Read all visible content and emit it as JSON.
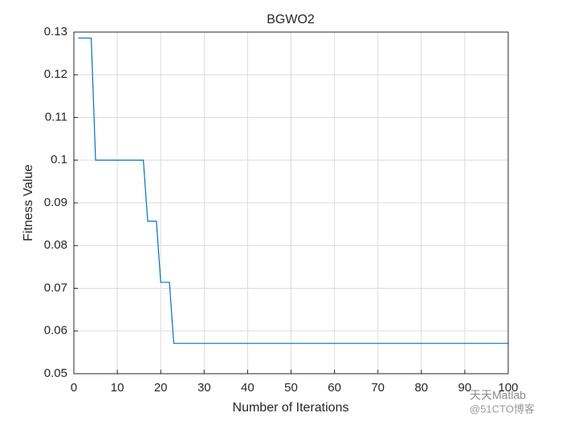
{
  "chart_data": {
    "type": "line",
    "title": "BGWO2",
    "x_label": "Number of Iterations",
    "y_label": "Fitness Value",
    "x": [
      1,
      4,
      5,
      16,
      17,
      19,
      20,
      22,
      23,
      100
    ],
    "series": [
      {
        "color": "#0072bd",
        "values": [
          0.1286,
          0.1286,
          0.1,
          0.1,
          0.0857,
          0.0857,
          0.0714,
          0.0714,
          0.0571,
          0.0571
        ]
      }
    ],
    "xlim": [
      0,
      100
    ],
    "xticks": [
      0,
      10,
      20,
      30,
      40,
      50,
      60,
      70,
      80,
      90,
      100
    ],
    "ylim": [
      0.05,
      0.13
    ],
    "yticks": [
      0.05,
      0.06,
      0.07,
      0.08,
      0.09,
      0.1,
      0.11,
      0.12,
      0.13
    ],
    "grid": true,
    "watermark": [
      "天天Matlab",
      "@51CTO博客"
    ]
  }
}
